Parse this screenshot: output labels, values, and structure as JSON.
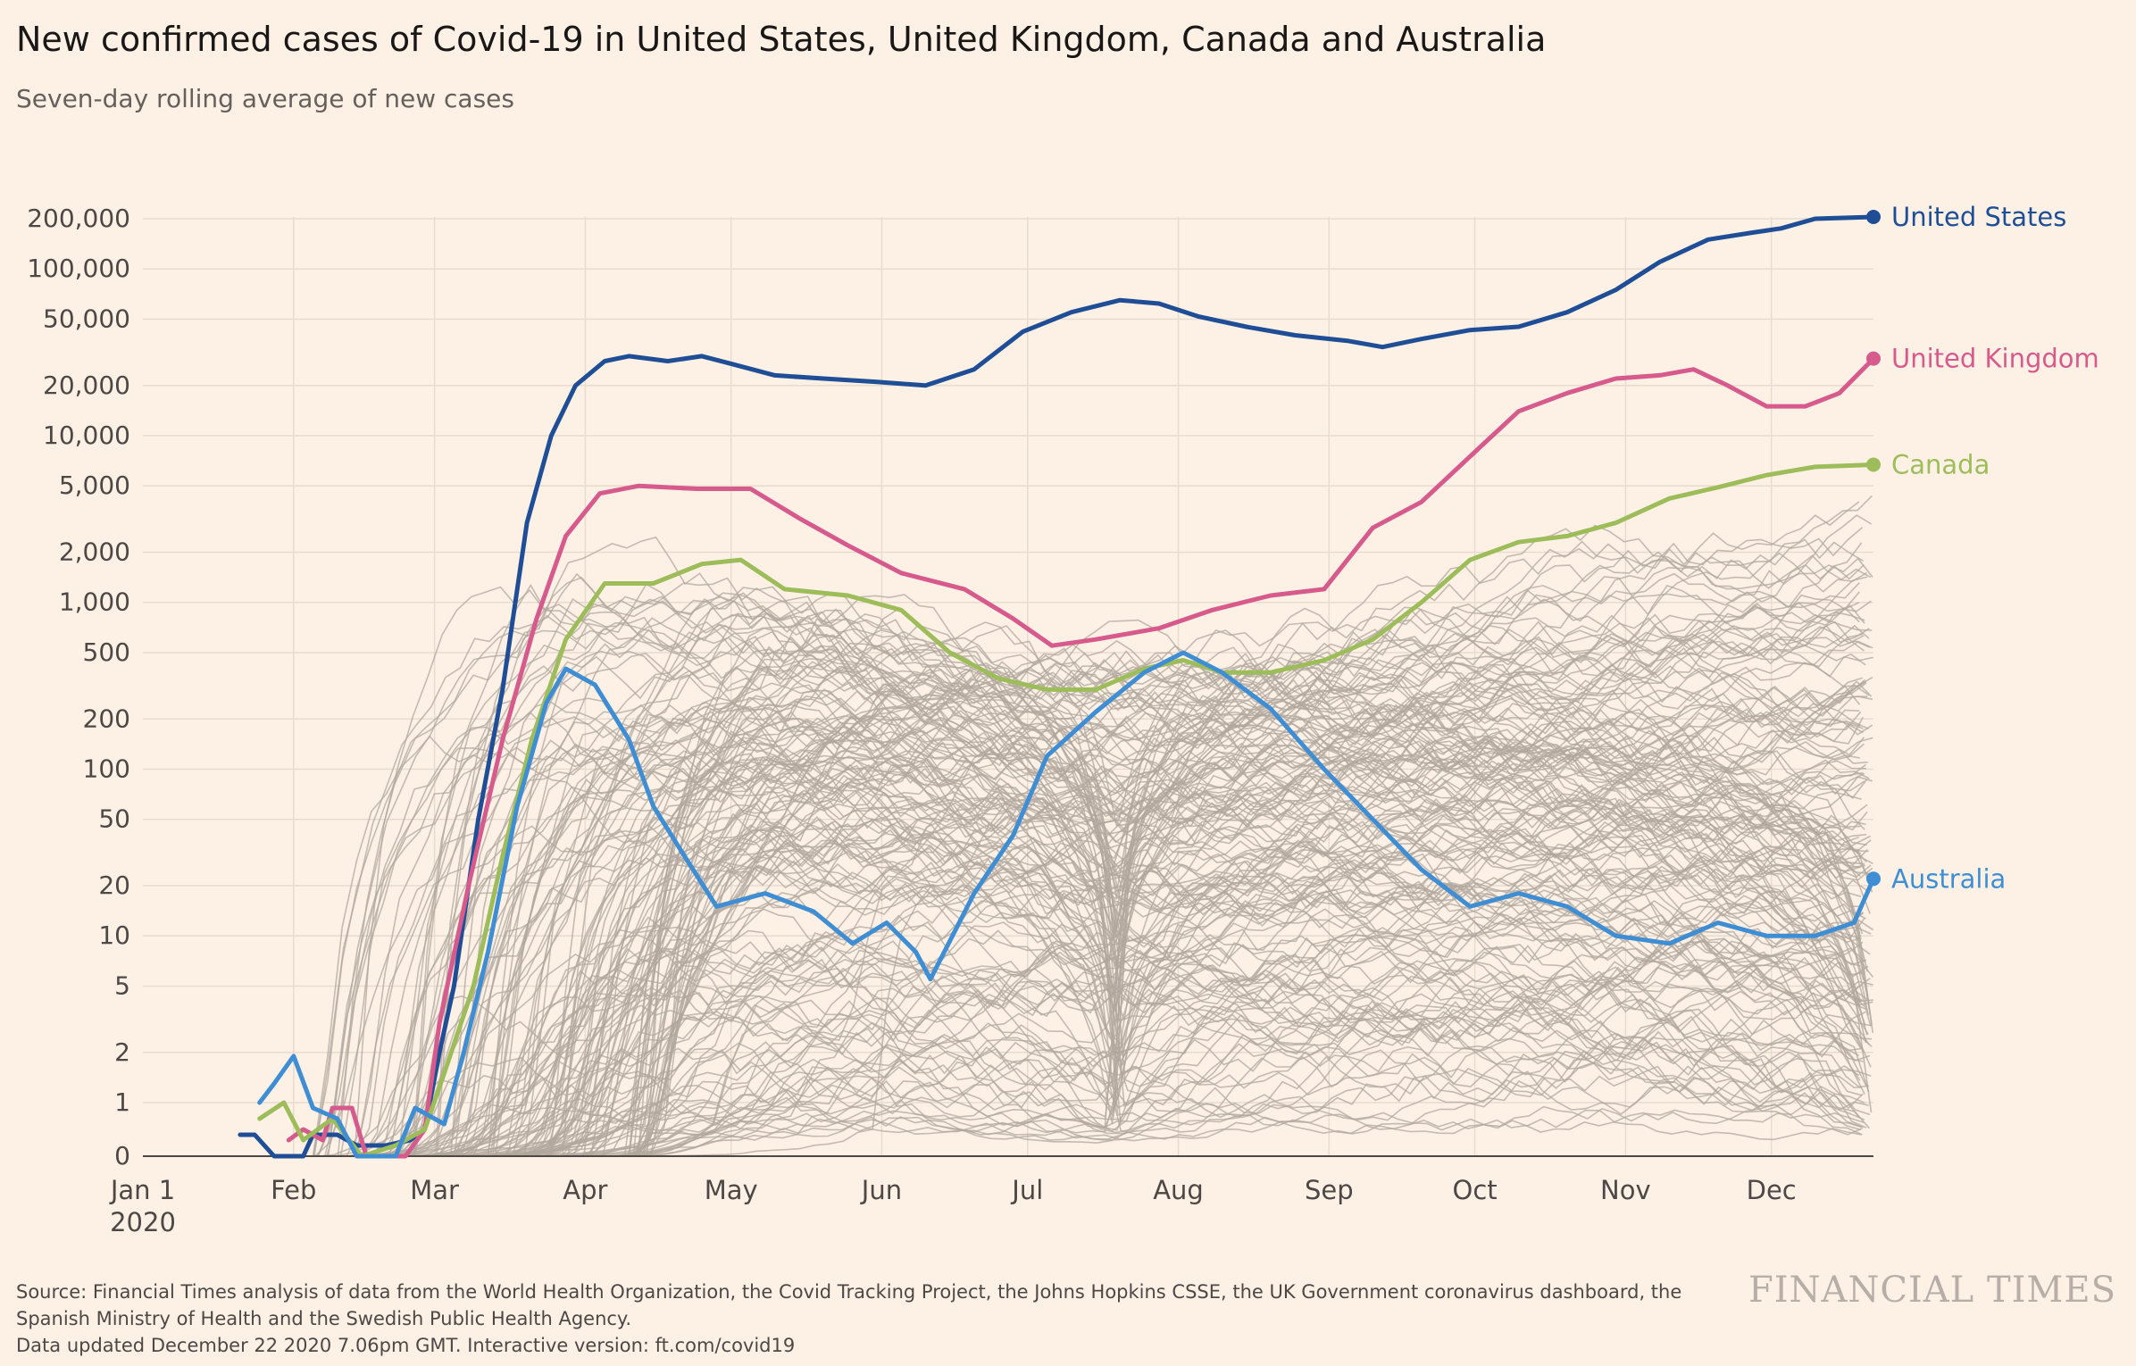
{
  "header": {
    "title": "New confirmed cases of Covid-19 in United States, United Kingdom, Canada and Australia",
    "subtitle": "Seven-day rolling average of new cases"
  },
  "footer": {
    "source_line1": "Source: Financial Times analysis of data from the World Health Organization, the Covid Tracking Project, the Johns Hopkins CSSE, the UK Government coronavirus dashboard, the",
    "source_line2": "Spanish Ministry of Health and the Swedish Public Health Agency.",
    "source_line3": "Data updated December 22 2020 7.06pm GMT. Interactive version: ft.com/covid19",
    "logo": "FINANCIAL TIMES"
  },
  "chart_data": {
    "type": "line",
    "title": "New confirmed cases of Covid-19 in United States, United Kingdom, Canada and Australia",
    "subtitle": "Seven-day rolling average of new cases",
    "y_scale": "log (0 shown at baseline)",
    "y_ticks": [
      0,
      1,
      2,
      5,
      10,
      20,
      50,
      100,
      200,
      500,
      1000,
      2000,
      5000,
      10000,
      20000,
      50000,
      100000,
      200000
    ],
    "y_tick_labels": [
      "0",
      "1",
      "2",
      "5",
      "10",
      "20",
      "50",
      "100",
      "200",
      "500",
      "1,000",
      "2,000",
      "5,000",
      "10,000",
      "20,000",
      "50,000",
      "100,000",
      "200,000"
    ],
    "x_ticks": [
      {
        "date": "2020-01-01",
        "label": "Jan 1",
        "sublabel": "2020"
      },
      {
        "date": "2020-02-01",
        "label": "Feb"
      },
      {
        "date": "2020-03-01",
        "label": "Mar"
      },
      {
        "date": "2020-04-01",
        "label": "Apr"
      },
      {
        "date": "2020-05-01",
        "label": "May"
      },
      {
        "date": "2020-06-01",
        "label": "Jun"
      },
      {
        "date": "2020-07-01",
        "label": "Jul"
      },
      {
        "date": "2020-08-01",
        "label": "Aug"
      },
      {
        "date": "2020-09-01",
        "label": "Sep"
      },
      {
        "date": "2020-10-01",
        "label": "Oct"
      },
      {
        "date": "2020-11-01",
        "label": "Nov"
      },
      {
        "date": "2020-12-01",
        "label": "Dec"
      }
    ],
    "xlim": [
      "2020-01-01",
      "2020-12-22"
    ],
    "grid": true,
    "legend": "direct labels at line ends (right)",
    "background_series_color": "#b0a79e",
    "series": [
      {
        "name": "United States",
        "color": "#1f4e96",
        "points": [
          [
            "2020-01-21",
            0.4
          ],
          [
            "2020-01-24",
            0.4
          ],
          [
            "2020-01-28",
            0
          ],
          [
            "2020-02-03",
            0
          ],
          [
            "2020-02-05",
            0.4
          ],
          [
            "2020-02-10",
            0.4
          ],
          [
            "2020-02-14",
            0.2
          ],
          [
            "2020-02-20",
            0.2
          ],
          [
            "2020-02-25",
            0.3
          ],
          [
            "2020-02-28",
            0.5
          ],
          [
            "2020-03-02",
            2
          ],
          [
            "2020-03-05",
            5
          ],
          [
            "2020-03-10",
            50
          ],
          [
            "2020-03-15",
            300
          ],
          [
            "2020-03-20",
            3000
          ],
          [
            "2020-03-25",
            10000
          ],
          [
            "2020-03-30",
            20000
          ],
          [
            "2020-04-05",
            28000
          ],
          [
            "2020-04-10",
            30000
          ],
          [
            "2020-04-18",
            28000
          ],
          [
            "2020-04-25",
            30000
          ],
          [
            "2020-05-01",
            27000
          ],
          [
            "2020-05-10",
            23000
          ],
          [
            "2020-05-20",
            22000
          ],
          [
            "2020-05-31",
            21000
          ],
          [
            "2020-06-10",
            20000
          ],
          [
            "2020-06-20",
            25000
          ],
          [
            "2020-06-30",
            42000
          ],
          [
            "2020-07-10",
            55000
          ],
          [
            "2020-07-20",
            65000
          ],
          [
            "2020-07-28",
            62000
          ],
          [
            "2020-08-05",
            52000
          ],
          [
            "2020-08-15",
            45000
          ],
          [
            "2020-08-25",
            40000
          ],
          [
            "2020-09-05",
            37000
          ],
          [
            "2020-09-12",
            34000
          ],
          [
            "2020-09-20",
            38000
          ],
          [
            "2020-09-30",
            43000
          ],
          [
            "2020-10-10",
            45000
          ],
          [
            "2020-10-20",
            55000
          ],
          [
            "2020-10-30",
            75000
          ],
          [
            "2020-11-08",
            110000
          ],
          [
            "2020-11-18",
            150000
          ],
          [
            "2020-11-27",
            165000
          ],
          [
            "2020-12-03",
            175000
          ],
          [
            "2020-12-10",
            200000
          ],
          [
            "2020-12-22",
            205000
          ]
        ]
      },
      {
        "name": "United Kingdom",
        "color": "#d75a8c",
        "points": [
          [
            "2020-01-31",
            0.3
          ],
          [
            "2020-02-03",
            0.5
          ],
          [
            "2020-02-07",
            0.3
          ],
          [
            "2020-02-09",
            0.9
          ],
          [
            "2020-02-13",
            0.9
          ],
          [
            "2020-02-16",
            0
          ],
          [
            "2020-02-24",
            0
          ],
          [
            "2020-02-28",
            0.5
          ],
          [
            "2020-03-02",
            3
          ],
          [
            "2020-03-08",
            20
          ],
          [
            "2020-03-15",
            150
          ],
          [
            "2020-03-22",
            800
          ],
          [
            "2020-03-28",
            2500
          ],
          [
            "2020-04-04",
            4500
          ],
          [
            "2020-04-12",
            5000
          ],
          [
            "2020-04-24",
            4800
          ],
          [
            "2020-05-05",
            4800
          ],
          [
            "2020-05-15",
            3200
          ],
          [
            "2020-05-25",
            2200
          ],
          [
            "2020-06-05",
            1500
          ],
          [
            "2020-06-18",
            1200
          ],
          [
            "2020-06-28",
            800
          ],
          [
            "2020-07-06",
            550
          ],
          [
            "2020-07-15",
            600
          ],
          [
            "2020-07-28",
            700
          ],
          [
            "2020-08-08",
            900
          ],
          [
            "2020-08-20",
            1100
          ],
          [
            "2020-08-31",
            1200
          ],
          [
            "2020-09-10",
            2800
          ],
          [
            "2020-09-20",
            4000
          ],
          [
            "2020-09-30",
            7500
          ],
          [
            "2020-10-10",
            14000
          ],
          [
            "2020-10-20",
            18000
          ],
          [
            "2020-10-30",
            22000
          ],
          [
            "2020-11-08",
            23000
          ],
          [
            "2020-11-15",
            25000
          ],
          [
            "2020-11-22",
            20000
          ],
          [
            "2020-11-30",
            15000
          ],
          [
            "2020-12-08",
            15000
          ],
          [
            "2020-12-15",
            18000
          ],
          [
            "2020-12-22",
            29000
          ]
        ]
      },
      {
        "name": "Canada",
        "color": "#9dbc5a",
        "points": [
          [
            "2020-01-25",
            0.7
          ],
          [
            "2020-01-30",
            1.0
          ],
          [
            "2020-02-03",
            0.3
          ],
          [
            "2020-02-09",
            0.7
          ],
          [
            "2020-02-15",
            0
          ],
          [
            "2020-02-22",
            0.2
          ],
          [
            "2020-02-28",
            0.5
          ],
          [
            "2020-03-03",
            1.5
          ],
          [
            "2020-03-09",
            5
          ],
          [
            "2020-03-15",
            30
          ],
          [
            "2020-03-21",
            150
          ],
          [
            "2020-03-28",
            600
          ],
          [
            "2020-04-05",
            1300
          ],
          [
            "2020-04-15",
            1300
          ],
          [
            "2020-04-25",
            1700
          ],
          [
            "2020-05-03",
            1800
          ],
          [
            "2020-05-12",
            1200
          ],
          [
            "2020-05-25",
            1100
          ],
          [
            "2020-06-05",
            900
          ],
          [
            "2020-06-15",
            500
          ],
          [
            "2020-06-25",
            350
          ],
          [
            "2020-07-05",
            300
          ],
          [
            "2020-07-15",
            300
          ],
          [
            "2020-07-25",
            400
          ],
          [
            "2020-08-02",
            450
          ],
          [
            "2020-08-10",
            380
          ],
          [
            "2020-08-20",
            380
          ],
          [
            "2020-08-31",
            450
          ],
          [
            "2020-09-10",
            600
          ],
          [
            "2020-09-20",
            1000
          ],
          [
            "2020-09-30",
            1800
          ],
          [
            "2020-10-10",
            2300
          ],
          [
            "2020-10-20",
            2500
          ],
          [
            "2020-10-30",
            3000
          ],
          [
            "2020-11-10",
            4200
          ],
          [
            "2020-11-20",
            4900
          ],
          [
            "2020-11-30",
            5800
          ],
          [
            "2020-12-10",
            6500
          ],
          [
            "2020-12-22",
            6700
          ]
        ]
      },
      {
        "name": "Australia",
        "color": "#3f8ed3",
        "points": [
          [
            "2020-01-25",
            1.0
          ],
          [
            "2020-01-28",
            1.3
          ],
          [
            "2020-02-01",
            1.9
          ],
          [
            "2020-02-05",
            0.9
          ],
          [
            "2020-02-10",
            0.7
          ],
          [
            "2020-02-14",
            0
          ],
          [
            "2020-02-22",
            0
          ],
          [
            "2020-02-26",
            0.9
          ],
          [
            "2020-03-03",
            0.6
          ],
          [
            "2020-03-07",
            2
          ],
          [
            "2020-03-12",
            8
          ],
          [
            "2020-03-18",
            60
          ],
          [
            "2020-03-24",
            250
          ],
          [
            "2020-03-28",
            400
          ],
          [
            "2020-04-03",
            320
          ],
          [
            "2020-04-10",
            150
          ],
          [
            "2020-04-15",
            60
          ],
          [
            "2020-04-20",
            35
          ],
          [
            "2020-04-28",
            15
          ],
          [
            "2020-05-08",
            18
          ],
          [
            "2020-05-18",
            14
          ],
          [
            "2020-05-26",
            9
          ],
          [
            "2020-06-02",
            12
          ],
          [
            "2020-06-08",
            8
          ],
          [
            "2020-06-11",
            5.5
          ],
          [
            "2020-06-20",
            18
          ],
          [
            "2020-06-28",
            40
          ],
          [
            "2020-07-05",
            120
          ],
          [
            "2020-07-15",
            220
          ],
          [
            "2020-07-25",
            380
          ],
          [
            "2020-08-02",
            500
          ],
          [
            "2020-08-10",
            380
          ],
          [
            "2020-08-20",
            230
          ],
          [
            "2020-08-31",
            100
          ],
          [
            "2020-09-10",
            50
          ],
          [
            "2020-09-20",
            25
          ],
          [
            "2020-09-30",
            15
          ],
          [
            "2020-10-10",
            18
          ],
          [
            "2020-10-20",
            15
          ],
          [
            "2020-10-30",
            10
          ],
          [
            "2020-11-10",
            9
          ],
          [
            "2020-11-20",
            12
          ],
          [
            "2020-11-30",
            10
          ],
          [
            "2020-12-10",
            10
          ],
          [
            "2020-12-18",
            12
          ],
          [
            "2020-12-22",
            22
          ]
        ]
      }
    ]
  }
}
